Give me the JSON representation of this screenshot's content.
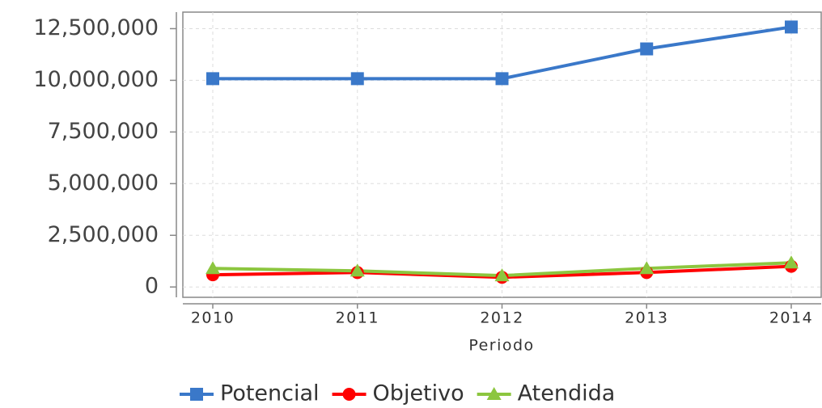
{
  "chart_data": {
    "type": "line",
    "x_label": "Periodo",
    "categories": [
      "2010",
      "2011",
      "2012",
      "2013",
      "2014"
    ],
    "series": [
      {
        "name": "Potencial",
        "color": "#3a78c9",
        "marker": "square",
        "values": [
          10080000,
          10080000,
          10080000,
          11520000,
          12580000
        ]
      },
      {
        "name": "Objetivo",
        "color": "#ff0000",
        "marker": "circle",
        "values": [
          590000,
          700000,
          470000,
          700000,
          1000000
        ]
      },
      {
        "name": "Atendida",
        "color": "#8cc63f",
        "marker": "triangle",
        "values": [
          900000,
          780000,
          550000,
          900000,
          1170000
        ]
      }
    ],
    "ylim": [
      -500000,
      13300000
    ],
    "yticks": [
      0,
      {
        "value": 2500000,
        "label": "2,500,000"
      },
      {
        "value": 5000000,
        "label": "5,000,000"
      },
      {
        "value": 7500000,
        "label": "7,500,000"
      },
      {
        "value": 10000000,
        "label": "10,000,000"
      },
      {
        "value": 12500000,
        "label": "12,500,000"
      }
    ],
    "grid": true,
    "legend": "bottom"
  }
}
